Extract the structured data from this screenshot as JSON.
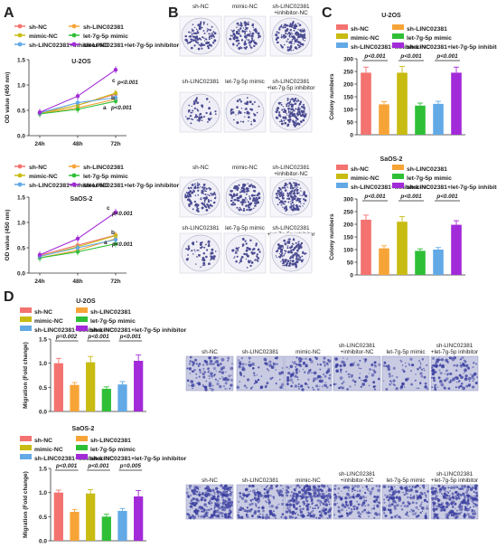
{
  "panel_labels": [
    "A",
    "B",
    "C",
    "D"
  ],
  "colors": {
    "sh-NC": "#f4726f",
    "sh-LINC02381": "#f7a437",
    "mimic-NC": "#c8bb12",
    "let-7g-5p mimic": "#2fbf37",
    "sh-LINC02381+inhibitor-NC": "#62a9e6",
    "sh-LINC02381+let-7g-5p inhibitor": "#a22ad8",
    "dish_bg": "#efeef6",
    "colony": "#4b4c92",
    "micro_bg": "#c8cbe2",
    "micro_cell": "#3b3fa0"
  },
  "legend_groups": [
    "sh-NC",
    "sh-LINC02381",
    "mimic-NC",
    "let-7g-5p mimic",
    "sh-LINC02381+inhibitor-NC",
    "sh-LINC02381+let-7g-5p inhibitor"
  ],
  "growth": {
    "ylabel": "OD value (450 nm)",
    "xlabels": [
      "24h",
      "48h",
      "72h"
    ],
    "yticks": [
      "0.0",
      "0.5",
      "1.0",
      "1.5"
    ],
    "annotations": [
      "c",
      "b",
      "a",
      "p<0.001",
      "p<0.001"
    ]
  },
  "colony_images": {
    "labels_row1": [
      "sh-NC",
      "mimic-NC",
      "sh-LINC02381\n+inhibitor-NC"
    ],
    "labels_row2": [
      "sh-LINC02381",
      "let-7g-5p mimic",
      "sh-LINC02381\n+let-7g-5p inhibitor"
    ]
  },
  "migration_images": {
    "labels": [
      "sh-NC",
      "sh-LINC02381",
      "mimic-NC",
      "sh-LINC02381\n+inhibitor-NC",
      "let-7g-5p mimic",
      "sh-LINC02381\n+let-7g-5p inhibitor"
    ]
  },
  "chart_data": [
    {
      "id": "A1",
      "type": "line",
      "title": "U-2OS",
      "xlabel": "",
      "ylabel": "OD value (450 nm)",
      "x": [
        "24h",
        "48h",
        "72h"
      ],
      "ylim": [
        0,
        1.5
      ],
      "series": [
        {
          "name": "sh-NC",
          "values": [
            0.45,
            0.6,
            0.82
          ]
        },
        {
          "name": "sh-LINC02381",
          "values": [
            0.44,
            0.55,
            0.72
          ]
        },
        {
          "name": "mimic-NC",
          "values": [
            0.44,
            0.6,
            0.84
          ]
        },
        {
          "name": "let-7g-5p mimic",
          "values": [
            0.43,
            0.52,
            0.68
          ]
        },
        {
          "name": "sh-LINC02381+inhibitor-NC",
          "values": [
            0.45,
            0.65,
            0.75
          ]
        },
        {
          "name": "sh-LINC02381+let-7g-5p inhibitor",
          "values": [
            0.46,
            0.78,
            1.3
          ]
        }
      ]
    },
    {
      "id": "A2",
      "type": "line",
      "title": "SaOS-2",
      "xlabel": "",
      "ylabel": "OD value (450 nm)",
      "x": [
        "24h",
        "48h",
        "72h"
      ],
      "ylim": [
        0,
        1.5
      ],
      "series": [
        {
          "name": "sh-NC",
          "values": [
            0.35,
            0.55,
            0.75
          ]
        },
        {
          "name": "sh-LINC02381",
          "values": [
            0.3,
            0.45,
            0.68
          ]
        },
        {
          "name": "mimic-NC",
          "values": [
            0.33,
            0.52,
            0.74
          ]
        },
        {
          "name": "let-7g-5p mimic",
          "values": [
            0.3,
            0.42,
            0.58
          ]
        },
        {
          "name": "sh-LINC02381+inhibitor-NC",
          "values": [
            0.33,
            0.5,
            0.66
          ]
        },
        {
          "name": "sh-LINC02381+let-7g-5p inhibitor",
          "values": [
            0.36,
            0.68,
            1.2
          ]
        }
      ]
    },
    {
      "id": "C1",
      "type": "bar",
      "title": "U-2OS",
      "xlabel": "",
      "ylabel": "Colony numbers",
      "ylim": [
        0,
        300
      ],
      "yticks": [
        0,
        50,
        100,
        150,
        200,
        250,
        300
      ],
      "categories": [
        "sh-NC",
        "sh-LINC02381",
        "mimic-NC",
        "let-7g-5p mimic",
        "sh-LINC02381+inhibitor-NC",
        "sh-LINC02381+let-7g-5p inhibitor"
      ],
      "values": [
        245,
        120,
        245,
        115,
        122,
        245
      ],
      "errors": [
        22,
        10,
        25,
        10,
        10,
        22
      ],
      "sig": [
        {
          "from": 0,
          "to": 1,
          "label": "p<0.001"
        },
        {
          "from": 2,
          "to": 3,
          "label": "p<0.001"
        },
        {
          "from": 4,
          "to": 5,
          "label": "p<0.001"
        }
      ]
    },
    {
      "id": "C2",
      "type": "bar",
      "title": "SaOS-2",
      "xlabel": "",
      "ylabel": "Colony numbers",
      "ylim": [
        0,
        300
      ],
      "yticks": [
        0,
        50,
        100,
        150,
        200,
        250,
        300
      ],
      "categories": [
        "sh-NC",
        "sh-LINC02381",
        "mimic-NC",
        "let-7g-5p mimic",
        "sh-LINC02381+inhibitor-NC",
        "sh-LINC02381+let-7g-5p inhibitor"
      ],
      "values": [
        218,
        105,
        210,
        95,
        100,
        198
      ],
      "errors": [
        18,
        10,
        20,
        8,
        8,
        16
      ],
      "sig": [
        {
          "from": 0,
          "to": 1,
          "label": "p<0.001"
        },
        {
          "from": 2,
          "to": 3,
          "label": "p<0.001"
        },
        {
          "from": 4,
          "to": 5,
          "label": "p<0.001"
        }
      ]
    },
    {
      "id": "D1",
      "type": "bar",
      "title": "U-2OS",
      "xlabel": "",
      "ylabel": "Migration (Fold change)",
      "ylim": [
        0,
        1.5
      ],
      "yticks": [
        "0.0",
        "0.5",
        "1.0",
        "1.5"
      ],
      "categories": [
        "sh-NC",
        "sh-LINC02381",
        "mimic-NC",
        "let-7g-5p mimic",
        "sh-LINC02381+inhibitor-NC",
        "sh-LINC02381+let-7g-5p inhibitor"
      ],
      "values": [
        1.0,
        0.55,
        1.02,
        0.47,
        0.56,
        1.05
      ],
      "errors": [
        0.1,
        0.05,
        0.12,
        0.04,
        0.06,
        0.12
      ],
      "sig": [
        {
          "from": 0,
          "to": 1,
          "label": "p=0.002"
        },
        {
          "from": 2,
          "to": 3,
          "label": "p<0.001"
        },
        {
          "from": 4,
          "to": 5,
          "label": "p<0.001"
        }
      ]
    },
    {
      "id": "D2",
      "type": "bar",
      "title": "SaOS-2",
      "xlabel": "",
      "ylabel": "Migration (Fold change)",
      "ylim": [
        0,
        1.5
      ],
      "yticks": [
        "0.0",
        "0.5",
        "1.0",
        "1.5"
      ],
      "categories": [
        "sh-NC",
        "sh-LINC02381",
        "mimic-NC",
        "let-7g-5p mimic",
        "sh-LINC02381+inhibitor-NC",
        "sh-LINC02381+let-7g-5p inhibitor"
      ],
      "values": [
        1.0,
        0.6,
        0.98,
        0.5,
        0.62,
        0.92
      ],
      "errors": [
        0.05,
        0.05,
        0.08,
        0.05,
        0.05,
        0.12
      ],
      "sig": [
        {
          "from": 0,
          "to": 1,
          "label": "p<0.001"
        },
        {
          "from": 2,
          "to": 3,
          "label": "p<0.001"
        },
        {
          "from": 4,
          "to": 5,
          "label": "p=0.005"
        }
      ]
    }
  ]
}
